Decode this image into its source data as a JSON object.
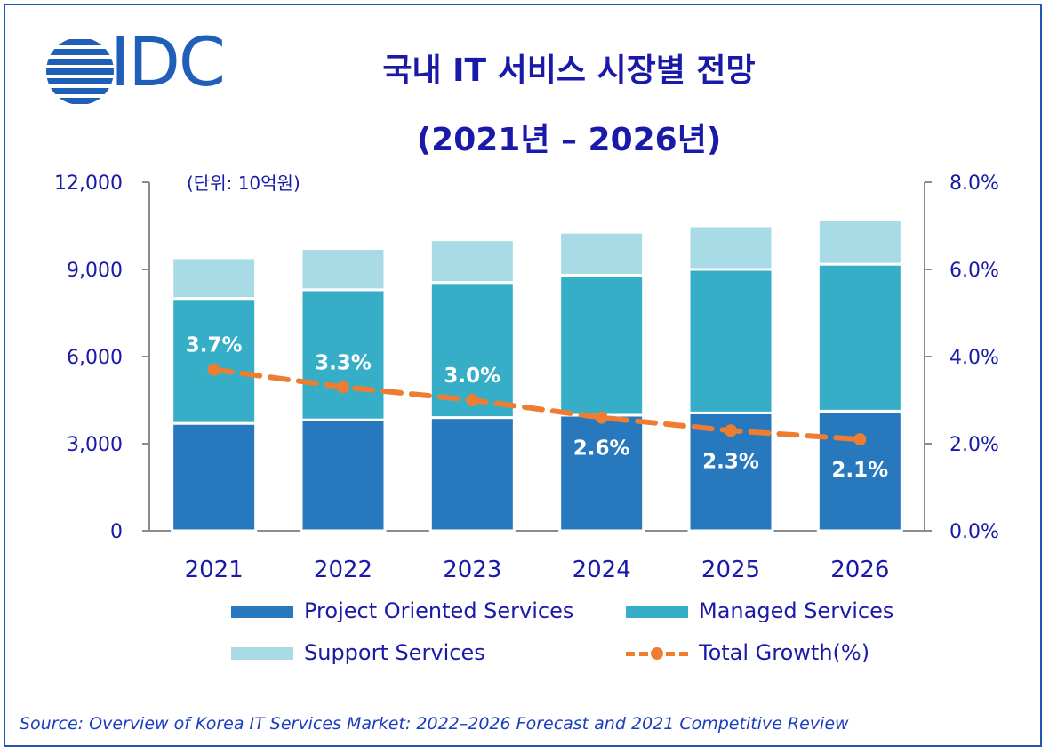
{
  "header": {
    "logo_text": "IDC",
    "title_line1": "국내 IT 서비스 시장별 전망",
    "title_line2": "(2021년 – 2026년)",
    "unit": "(단위: 10억원)"
  },
  "source": "Source: Overview of Korea IT Services Market: 2022–2026 Forecast and 2021 Competitive Review",
  "colors": {
    "project": "#2878be",
    "managed": "#36aec8",
    "support": "#a8dbe6",
    "growth": "#ee7d31",
    "text": "#1a1aa8",
    "axis": "#8c8c8c"
  },
  "chart_data": {
    "type": "bar",
    "stacked": true,
    "categories": [
      "2021",
      "2022",
      "2023",
      "2024",
      "2025",
      "2026"
    ],
    "series": [
      {
        "name": "Project Oriented Services",
        "values": [
          3700,
          3820,
          3900,
          3980,
          4060,
          4120
        ]
      },
      {
        "name": "Managed Services",
        "values": [
          4300,
          4480,
          4650,
          4820,
          4940,
          5060
        ]
      },
      {
        "name": "Support Services",
        "values": [
          1400,
          1420,
          1470,
          1480,
          1500,
          1530
        ]
      }
    ],
    "line_series": {
      "name": "Total Growth(%)",
      "axis": "right",
      "values": [
        3.7,
        3.3,
        3.0,
        2.6,
        2.3,
        2.1
      ],
      "labels": [
        "3.7%",
        "3.3%",
        "3.0%",
        "2.6%",
        "2.3%",
        "2.1%"
      ]
    },
    "y_left": {
      "min": 0,
      "max": 12000,
      "ticks": [
        0,
        3000,
        6000,
        9000,
        12000
      ],
      "tick_labels": [
        "0",
        "3,000",
        "6,000",
        "9,000",
        "12,000"
      ]
    },
    "y_right": {
      "min": 0,
      "max": 8,
      "ticks": [
        0,
        2,
        4,
        6,
        8
      ],
      "tick_labels": [
        "0.0%",
        "2.0%",
        "4.0%",
        "6.0%",
        "8.0%"
      ]
    },
    "legend": [
      {
        "name": "Project Oriented Services",
        "kind": "bar",
        "color_key": "project"
      },
      {
        "name": "Managed Services",
        "kind": "bar",
        "color_key": "managed"
      },
      {
        "name": "Support Services",
        "kind": "bar",
        "color_key": "support"
      },
      {
        "name": "Total Growth(%)",
        "kind": "line",
        "color_key": "growth"
      }
    ]
  }
}
